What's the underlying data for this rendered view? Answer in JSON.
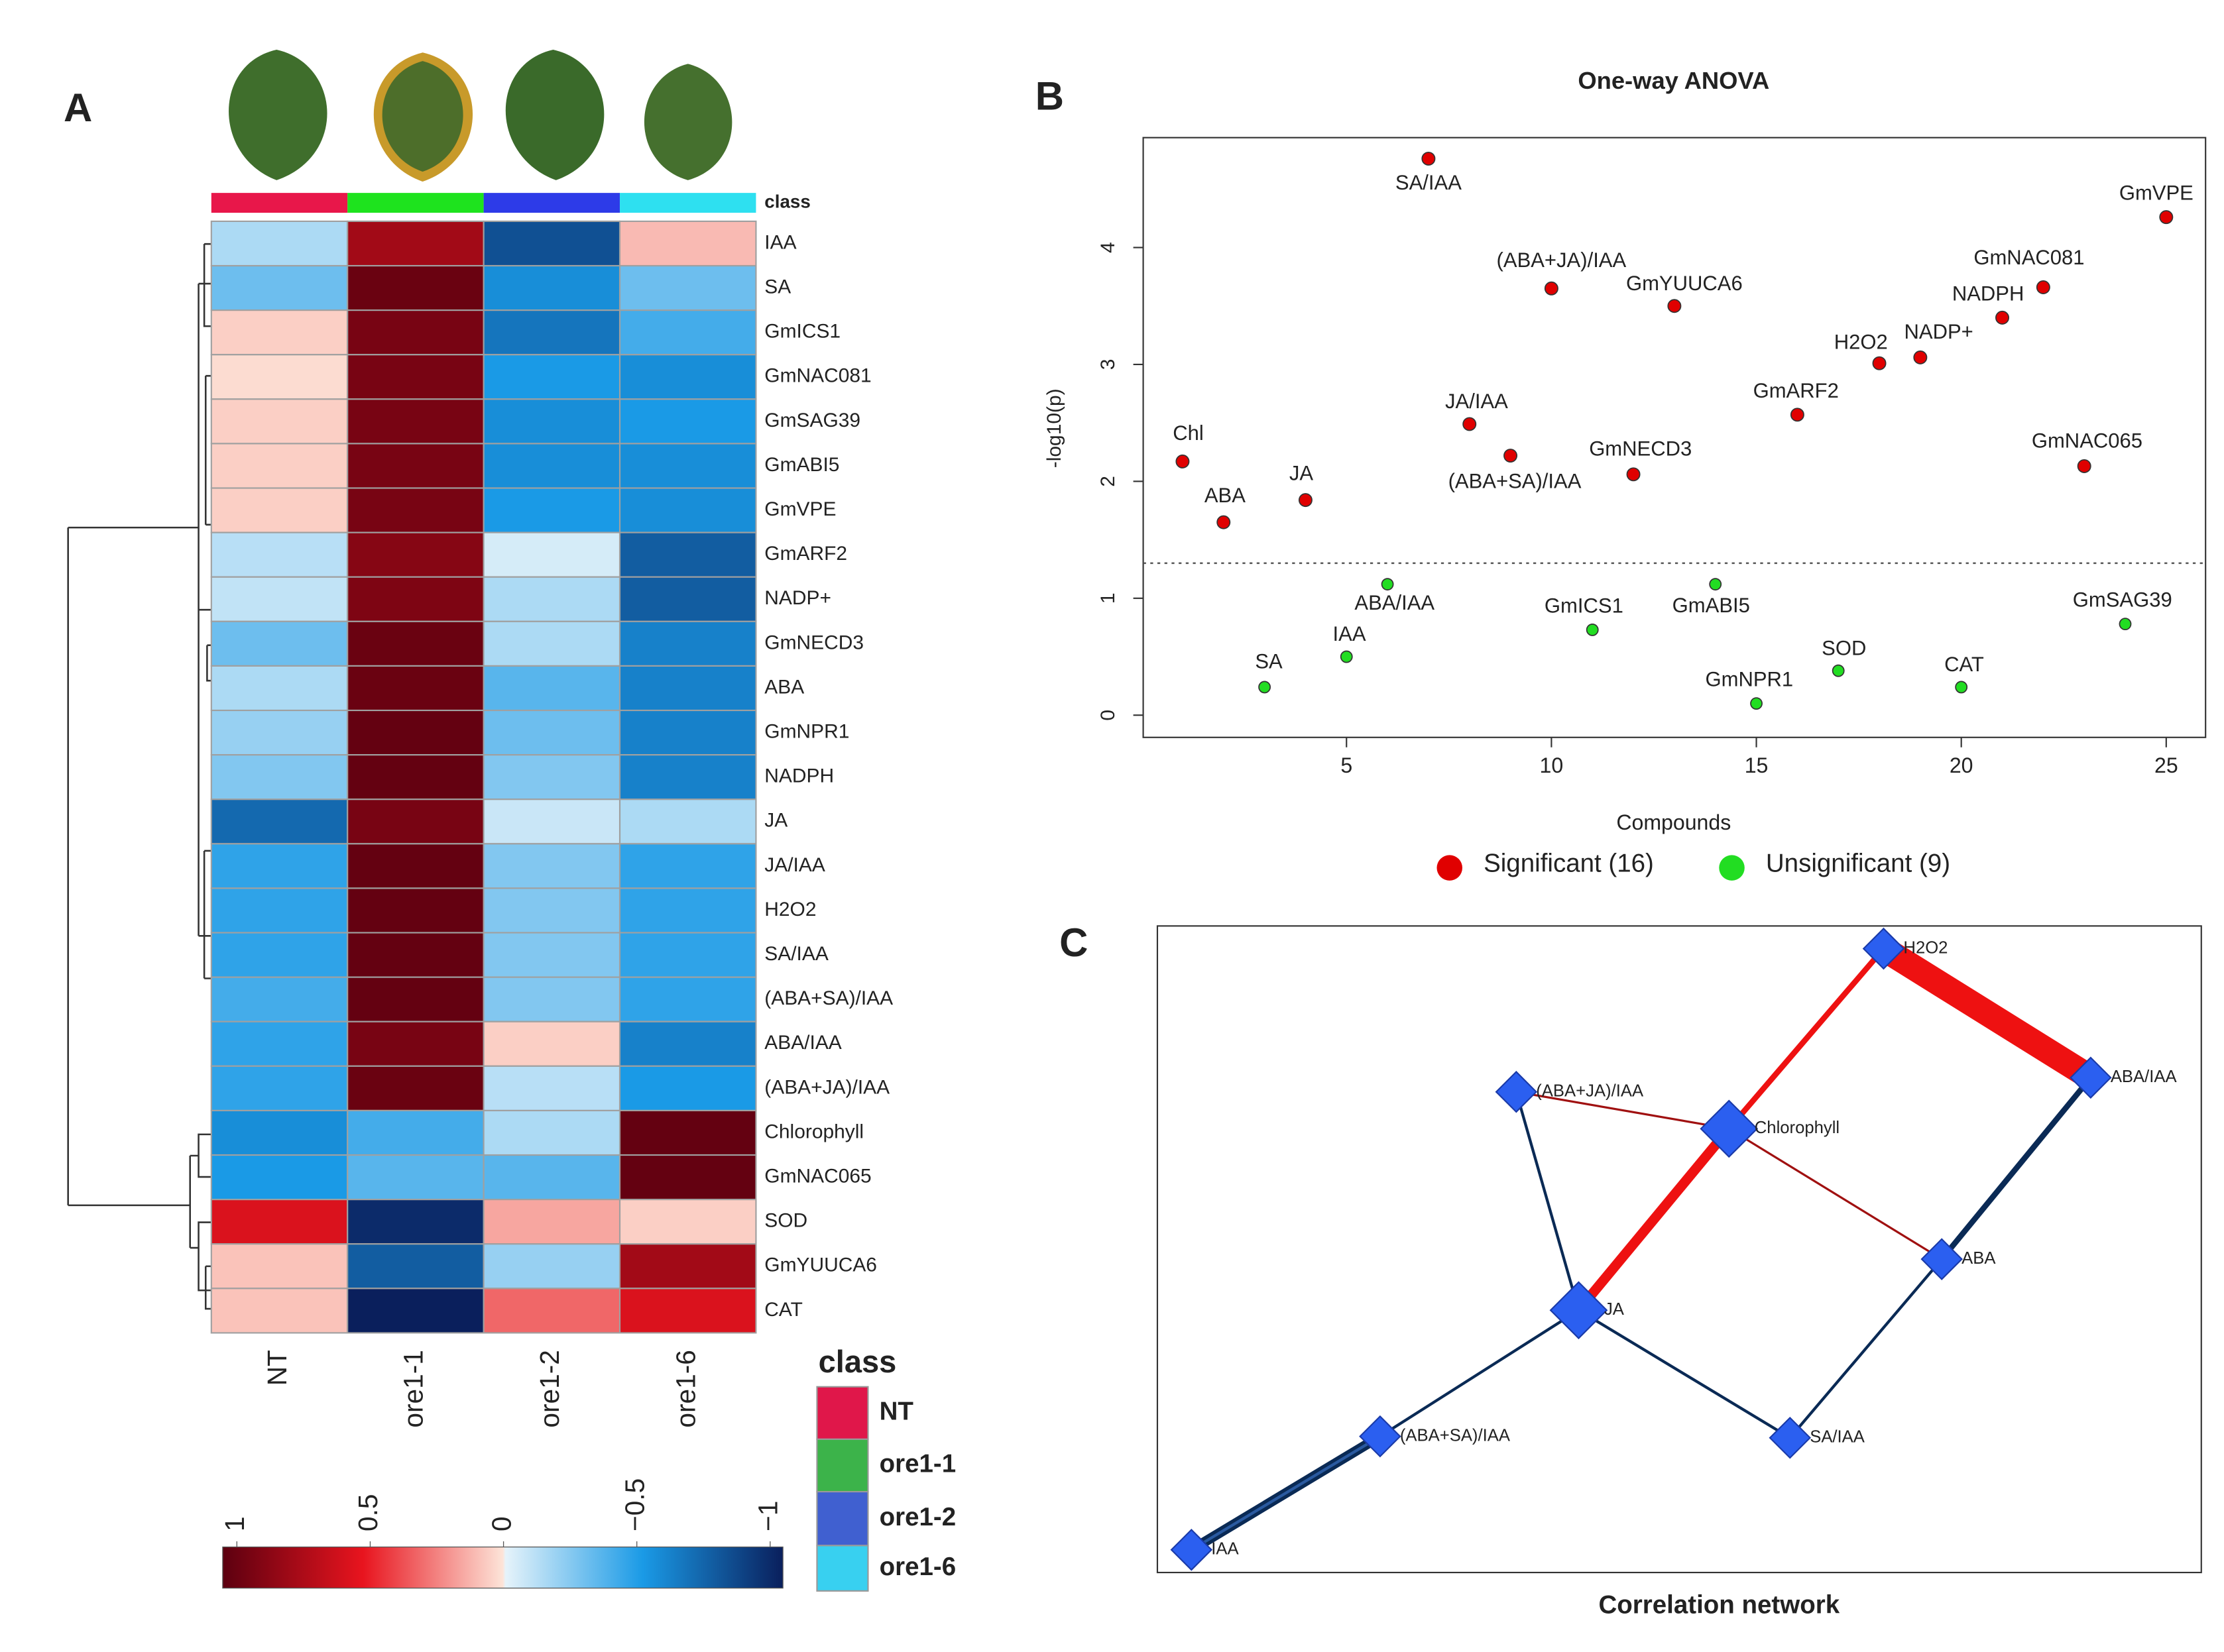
{
  "chart_data": [
    {
      "type": "heatmap",
      "panel": "A",
      "class_label": "class",
      "categories": [
        "NT",
        "ore1-1",
        "ore1-2",
        "ore1-6"
      ],
      "class_colors": [
        "#e8174a",
        "#1ee31e",
        "#2d3be8",
        "#2ee0f0"
      ],
      "legend_colors": [
        "#e0174a",
        "#3cb34a",
        "#4060d0",
        "#38d0f0"
      ],
      "rows": [
        "IAA",
        "SA",
        "GmICS1",
        "GmNAC081",
        "GmSAG39",
        "GmABI5",
        "GmVPE",
        "GmARF2",
        "NADP+",
        "GmNECD3",
        "ABA",
        "GmNPR1",
        "NADPH",
        "JA",
        "JA/IAA",
        "H2O2",
        "SA/IAA",
        "(ABA+SA)/IAA",
        "ABA/IAA",
        "(ABA+JA)/IAA",
        "Chlorophyll",
        "GmNAC065",
        "SOD",
        "GmYUUCA6",
        "CAT"
      ],
      "values": [
        [
          -0.15,
          0.75,
          -0.8,
          0.1
        ],
        [
          -0.3,
          0.95,
          -0.55,
          -0.3
        ],
        [
          0.05,
          0.9,
          -0.65,
          -0.4
        ],
        [
          0.02,
          0.9,
          -0.5,
          -0.55
        ],
        [
          0.05,
          0.9,
          -0.55,
          -0.5
        ],
        [
          0.05,
          0.9,
          -0.55,
          -0.55
        ],
        [
          0.05,
          0.9,
          -0.5,
          -0.55
        ],
        [
          -0.12,
          0.85,
          -0.05,
          -0.75
        ],
        [
          -0.1,
          0.88,
          -0.15,
          -0.75
        ],
        [
          -0.3,
          0.95,
          -0.15,
          -0.6
        ],
        [
          -0.15,
          0.95,
          -0.35,
          -0.6
        ],
        [
          -0.2,
          0.97,
          -0.3,
          -0.6
        ],
        [
          -0.25,
          0.97,
          -0.25,
          -0.6
        ],
        [
          -0.7,
          0.9,
          -0.08,
          -0.15
        ],
        [
          -0.45,
          0.97,
          -0.25,
          -0.45
        ],
        [
          -0.45,
          0.97,
          -0.25,
          -0.45
        ],
        [
          -0.45,
          0.97,
          -0.25,
          -0.45
        ],
        [
          -0.4,
          0.97,
          -0.25,
          -0.45
        ],
        [
          -0.45,
          0.9,
          0.05,
          -0.6
        ],
        [
          -0.45,
          0.95,
          -0.12,
          -0.5
        ],
        [
          -0.55,
          -0.4,
          -0.15,
          0.97
        ],
        [
          -0.5,
          -0.35,
          -0.35,
          0.97
        ],
        [
          0.55,
          -0.95,
          0.15,
          0.05
        ],
        [
          0.08,
          -0.75,
          -0.2,
          0.75
        ],
        [
          0.08,
          -1,
          0.3,
          0.55
        ]
      ],
      "colorscale": [
        [
          1,
          "#5c0010"
        ],
        [
          0.5,
          "#e8141e"
        ],
        [
          0,
          "#fde4d8"
        ],
        [
          -0.01,
          "#e6f3fa"
        ],
        [
          -0.5,
          "#1a9ae6"
        ],
        [
          -1,
          "#0a1f5c"
        ]
      ],
      "colorbar_lim": [
        1,
        -1
      ],
      "colorbar_ticks": [
        1,
        0.5,
        0,
        {
          "value": -0.5,
          "label": "−0.5"
        },
        {
          "value": -1,
          "label": "−1"
        }
      ]
    },
    {
      "type": "scatter",
      "panel": "B",
      "title": "One-way ANOVA",
      "xlabel": "Compounds",
      "ylabel": "-log10(p)",
      "xlim": [
        0.04,
        25.96
      ],
      "ylim": [
        -0.19,
        4.94
      ],
      "xticks": [
        5,
        10,
        15,
        20,
        25
      ],
      "yticks": [
        0,
        1,
        2,
        3,
        4
      ],
      "threshold": 1.3,
      "series": [
        {
          "name": "Significant (16)",
          "color": "#e00000",
          "x": [
            1,
            2,
            4,
            7,
            8,
            9,
            10,
            12,
            13,
            16,
            18,
            19,
            21,
            22,
            23,
            25
          ],
          "values": [
            2.17,
            1.65,
            1.84,
            4.76,
            2.49,
            2.22,
            3.65,
            2.06,
            3.5,
            2.57,
            3.01,
            3.06,
            3.4,
            3.66,
            2.13,
            4.26
          ],
          "labels": [
            "Chl",
            "ABA",
            "JA",
            "SA/IAA",
            "JA/IAA",
            "(ABA+SA)/IAA",
            "(ABA+JA)/IAA",
            "GmNECD3",
            "GmYUUCA6",
            "GmARF2",
            "H2O2",
            "NADP+",
            "NADPH",
            "GmNAC081",
            "GmNAC065",
            "GmVPE"
          ]
        },
        {
          "name": "Unsignificant (9)",
          "color": "#22dd22",
          "x": [
            3,
            5,
            6,
            11,
            14,
            15,
            17,
            20,
            24
          ],
          "values": [
            0.24,
            0.5,
            1.12,
            0.73,
            1.12,
            0.1,
            0.38,
            0.24,
            0.78
          ],
          "labels": [
            "SA",
            "IAA",
            "ABA/IAA",
            "GmICS1",
            "GmABI5",
            "GmNPR1",
            "SOD",
            "CAT",
            "GmSAG39"
          ]
        }
      ]
    },
    {
      "type": "network",
      "panel": "C",
      "title": "Correlation network",
      "nodes": [
        "H2O2",
        "ABA/IAA",
        "(ABA+JA)/IAA",
        "Chlorophyll",
        "ABA",
        "JA",
        "(ABA+SA)/IAA",
        "SA/IAA",
        "IAA"
      ],
      "node_color": "#2b5ff0",
      "edges": [
        [
          0,
          1,
          "#ee1111"
        ],
        [
          0,
          3,
          "#ee1111"
        ],
        [
          3,
          5,
          "#ee1111"
        ],
        [
          2,
          3,
          "#a01010"
        ],
        [
          3,
          4,
          "#a01010"
        ],
        [
          1,
          4,
          "#0a2a55"
        ],
        [
          2,
          5,
          "#0a2a55"
        ],
        [
          5,
          7,
          "#0a2a55"
        ],
        [
          4,
          7,
          "#0a2a55"
        ],
        [
          5,
          6,
          "#0a2a55"
        ],
        [
          6,
          8,
          "#0a2a55"
        ]
      ]
    }
  ]
}
